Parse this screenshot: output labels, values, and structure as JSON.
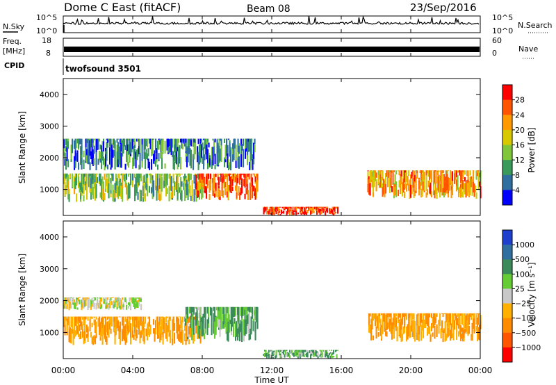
{
  "header": {
    "title": "Dome C East (fitACF)",
    "beam": "Beam 08",
    "date": "23/Sep/2016"
  },
  "top_panels": {
    "nsky_label": "N.Sky",
    "nsky_ticks": [
      "10^5",
      "10^0"
    ],
    "nsky_right_ticks": [
      "10^5",
      "10^0"
    ],
    "nsearch_label": "N.Search",
    "freq_label_1": "Freq.",
    "freq_label_2": "[MHz]",
    "freq_ticks": [
      "18",
      "8"
    ],
    "nave_ticks": [
      "60",
      "0"
    ],
    "nave_label": "Nave",
    "cpid_label": "CPID",
    "cpid_value": "twofsound 3501"
  },
  "colorbars": {
    "power": {
      "label": "Power [dB]",
      "ticks": [
        "28",
        "24",
        "20",
        "16",
        "12",
        "8",
        "4"
      ],
      "colors": [
        "#ff0000",
        "#ff5500",
        "#ff9900",
        "#d8c800",
        "#7fc63a",
        "#3a9a5a",
        "#2f6fa0",
        "#0000ff"
      ]
    },
    "velocity": {
      "label": "Velocity [m s⁻¹]",
      "ticks": [
        "1000",
        "500",
        "100",
        "25",
        "−25",
        "−100",
        "−500",
        "−1000"
      ],
      "colors": [
        "#1f3fcf",
        "#2f6fa0",
        "#3a8a5a",
        "#66cc33",
        "#c8c8c8",
        "#ffb000",
        "#ff8c00",
        "#ff5500",
        "#ff0000"
      ]
    }
  },
  "chart_data": [
    {
      "type": "heatmap",
      "name": "power",
      "ylabel": "Slant Range [km]",
      "xlabel": "Time UT",
      "xticks": [
        "00:00",
        "04:00",
        "08:00",
        "12:00",
        "16:00",
        "20:00",
        "00:00"
      ],
      "yticks": [
        "1000",
        "2000",
        "3000",
        "4000"
      ],
      "xlim_hours": [
        0,
        24
      ],
      "ylim_km": [
        180,
        4500
      ],
      "echo_regions": [
        {
          "t0": 0.0,
          "t1": 8.0,
          "r0": 600,
          "r1": 1500,
          "level": "green-orange",
          "value_db": 14
        },
        {
          "t0": 7.6,
          "t1": 11.2,
          "r0": 650,
          "r1": 1500,
          "level": "red",
          "value_db": 26
        },
        {
          "t0": 11.5,
          "t1": 15.8,
          "r0": 180,
          "r1": 450,
          "level": "red",
          "value_db": 28
        },
        {
          "t0": 17.5,
          "t1": 24.0,
          "r0": 700,
          "r1": 1600,
          "level": "orange-red",
          "value_db": 22
        },
        {
          "t0": 0.0,
          "t1": 11.0,
          "r0": 1600,
          "r1": 2600,
          "level": "blue-green",
          "value_db": 8
        }
      ]
    },
    {
      "type": "heatmap",
      "name": "velocity",
      "ylabel": "Slant Range [km]",
      "xlabel": "Time UT",
      "xticks": [
        "00:00",
        "04:00",
        "08:00",
        "12:00",
        "16:00",
        "20:00",
        "00:00"
      ],
      "yticks": [
        "1000",
        "2000",
        "3000",
        "4000"
      ],
      "xlim_hours": [
        0,
        24
      ],
      "ylim_km": [
        180,
        4500
      ],
      "echo_regions": [
        {
          "t0": 0.0,
          "t1": 8.0,
          "r0": 600,
          "r1": 1500,
          "value_ms": -100
        },
        {
          "t0": 7.0,
          "t1": 11.2,
          "r0": 700,
          "r1": 1800,
          "value_ms": 100
        },
        {
          "t0": 11.5,
          "t1": 15.8,
          "r0": 180,
          "r1": 450,
          "value_ms": 100
        },
        {
          "t0": 17.5,
          "t1": 24.0,
          "r0": 700,
          "r1": 1600,
          "value_ms": -100
        },
        {
          "t0": 0.0,
          "t1": 4.5,
          "r0": 1700,
          "r1": 2100,
          "value_ms": 0
        }
      ]
    }
  ]
}
